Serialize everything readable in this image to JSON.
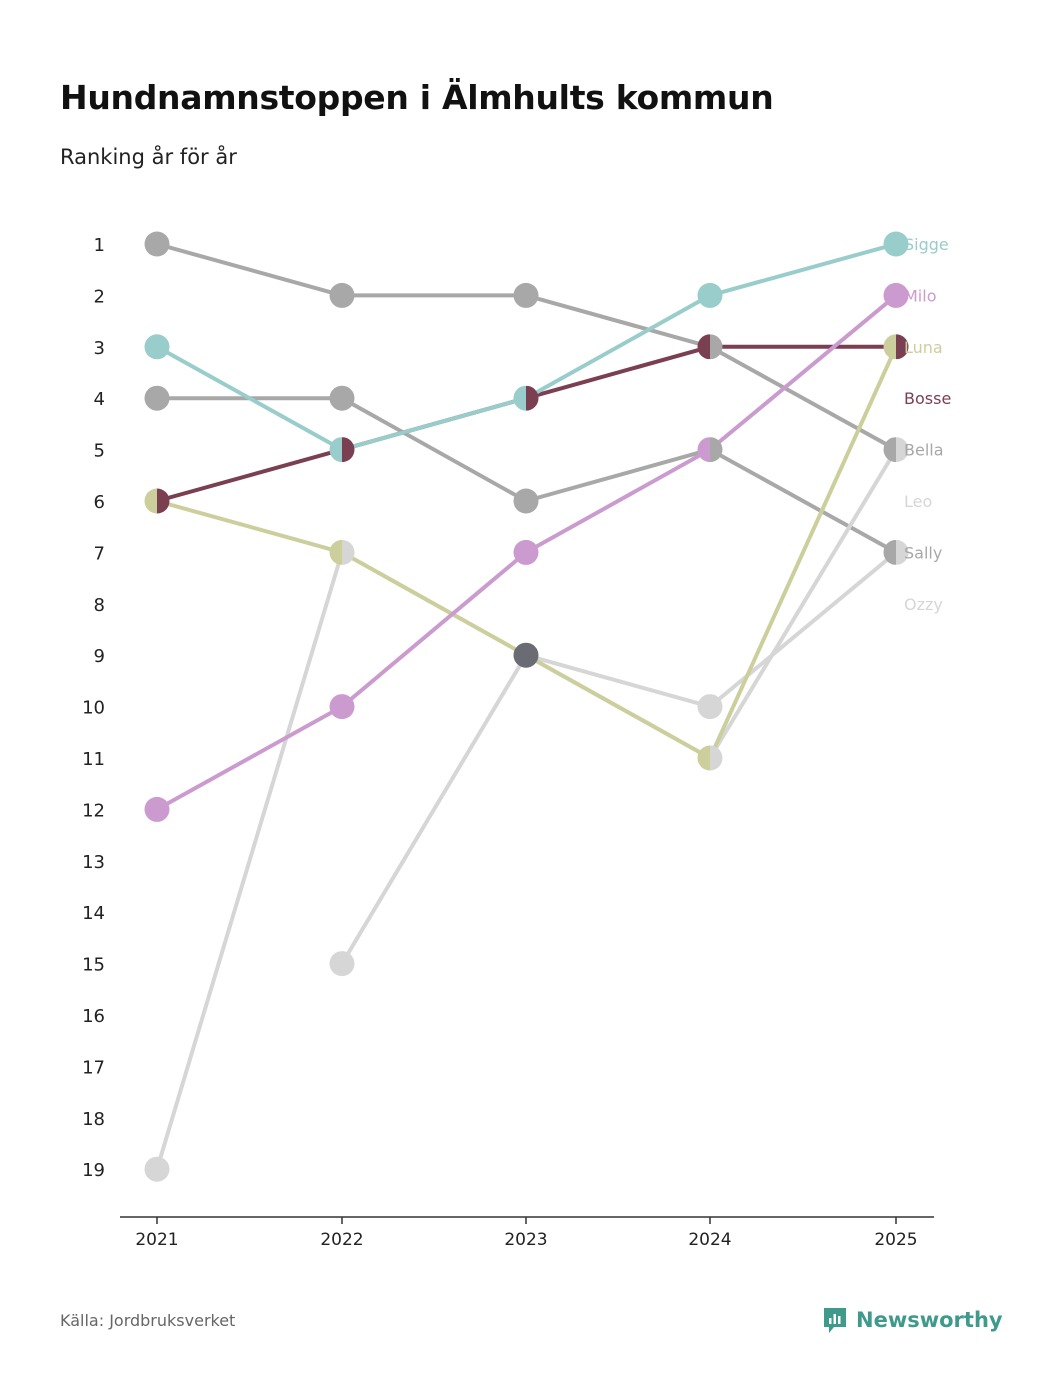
{
  "title": "Hundnamnstoppen i Älmhults kommun",
  "subtitle": "Ranking år för år",
  "source": "Källa: Jordbruksverket",
  "brand": "Newsworthy",
  "brand_color": "#3f9a8c",
  "chart_data": {
    "type": "line",
    "x": [
      "2021",
      "2022",
      "2023",
      "2024",
      "2025"
    ],
    "y_ticks": [
      "1",
      "2",
      "3",
      "4",
      "5",
      "6",
      "7",
      "8",
      "9",
      "10",
      "11",
      "12",
      "13",
      "14",
      "15",
      "16",
      "17",
      "18",
      "19"
    ],
    "ylim": [
      1,
      19
    ],
    "y_inverted": true,
    "series": [
      {
        "name": "Sigge",
        "color": "#98cdcb",
        "values": [
          3,
          5,
          4,
          2,
          1
        ]
      },
      {
        "name": "Milo",
        "color": "#cb9bcf",
        "values": [
          12,
          10,
          7,
          5,
          2
        ]
      },
      {
        "name": "Luna",
        "color": "#cccf9c",
        "values": [
          6,
          7,
          9,
          11,
          3
        ]
      },
      {
        "name": "Bosse",
        "color": "#7b3f52",
        "values": [
          6,
          5,
          4,
          3,
          3
        ]
      },
      {
        "name": "Bella",
        "color": "#a8a8a8",
        "values": [
          1,
          2,
          2,
          3,
          5
        ]
      },
      {
        "name": "Leo",
        "color": "#d6d6d6",
        "values": [
          19,
          7,
          9,
          11,
          5
        ]
      },
      {
        "name": "Sally",
        "color": "#a8a8a8",
        "values": [
          4,
          4,
          6,
          5,
          7
        ]
      },
      {
        "name": "Ozzy",
        "color": "#d6d6d6",
        "values": [
          null,
          15,
          9,
          10,
          7
        ]
      }
    ],
    "label_ranks": [
      1,
      2,
      3,
      4,
      5,
      6,
      7,
      8
    ],
    "xlabel": "",
    "ylabel": ""
  }
}
